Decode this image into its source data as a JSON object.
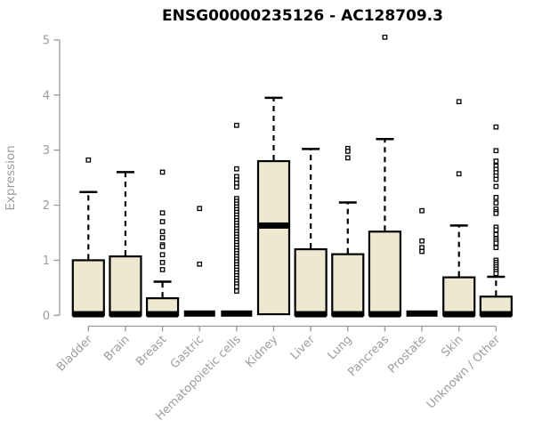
{
  "chart_data": {
    "type": "boxplot",
    "title": "ENSG00000235126 - AC128709.3",
    "ylabel": "Expression",
    "xlabel": "",
    "ylim": [
      0,
      5
    ],
    "yticks": [
      0,
      1,
      2,
      3,
      4,
      5
    ],
    "grid": false,
    "legend": "none",
    "categories": [
      "Bladder",
      "Brain",
      "Breast",
      "Gastric",
      "Hematopoietic cells",
      "Kidney",
      "Liver",
      "Lung",
      "Pancreas",
      "Prostate",
      "Skin",
      "Unknown / Other"
    ],
    "series": [
      {
        "category": "Bladder",
        "q1": 0,
        "median": 0.02,
        "q3": 1.0,
        "whisker_high": 2.24,
        "outliers": [
          2.82
        ]
      },
      {
        "category": "Brain",
        "q1": 0,
        "median": 0.02,
        "q3": 1.07,
        "whisker_high": 2.6,
        "outliers": []
      },
      {
        "category": "Breast",
        "q1": 0,
        "median": 0.02,
        "q3": 0.31,
        "whisker_high": 0.61,
        "outliers": [
          2.6,
          1.86,
          1.7,
          1.52,
          1.41,
          1.28,
          1.25,
          1.1,
          0.96,
          0.83
        ]
      },
      {
        "category": "Gastric",
        "q1": 0,
        "median": 0.01,
        "q3": 0.03,
        "whisker_high": 0.03,
        "outliers": [
          1.94,
          0.93
        ]
      },
      {
        "category": "Hematopoietic cells",
        "q1": 0,
        "median": 0.01,
        "q3": 0.03,
        "whisker_high": 0.03,
        "outliers": [
          3.45,
          2.66,
          2.52,
          2.46,
          2.4,
          2.33,
          2.12,
          2.07,
          2.02,
          1.97,
          1.92,
          1.87,
          1.82,
          1.77,
          1.72,
          1.67,
          1.62,
          1.57,
          1.52,
          1.47,
          1.42,
          1.37,
          1.32,
          1.27,
          1.22,
          1.17,
          1.12,
          1.07,
          1.02,
          0.97,
          0.92,
          0.87,
          0.82,
          0.77,
          0.72,
          0.67,
          0.62,
          0.57,
          0.52,
          0.44
        ]
      },
      {
        "category": "Kidney",
        "q1": 0.02,
        "median": 1.63,
        "q3": 2.8,
        "whisker_high": 3.95,
        "outliers": []
      },
      {
        "category": "Liver",
        "q1": 0,
        "median": 0.02,
        "q3": 1.2,
        "whisker_high": 3.02,
        "outliers": []
      },
      {
        "category": "Lung",
        "q1": 0,
        "median": 0.02,
        "q3": 1.11,
        "whisker_high": 2.05,
        "outliers": [
          3.03,
          2.98,
          2.86
        ]
      },
      {
        "category": "Pancreas",
        "q1": 0,
        "median": 0.02,
        "q3": 1.52,
        "whisker_high": 3.2,
        "outliers": [
          5.05
        ]
      },
      {
        "category": "Prostate",
        "q1": 0,
        "median": 0.01,
        "q3": 0.03,
        "whisker_high": 0.03,
        "outliers": [
          1.9,
          1.35,
          1.23,
          1.16
        ]
      },
      {
        "category": "Skin",
        "q1": 0,
        "median": 0.02,
        "q3": 0.69,
        "whisker_high": 1.63,
        "outliers": [
          3.88,
          2.57
        ]
      },
      {
        "category": "Unknown / Other",
        "q1": 0,
        "median": 0.02,
        "q3": 0.34,
        "whisker_high": 0.7,
        "outliers": [
          3.42,
          2.99,
          2.8,
          2.71,
          2.65,
          2.59,
          2.53,
          2.47,
          2.34,
          2.14,
          2.04,
          1.93,
          1.88,
          1.85,
          1.6,
          1.55,
          1.47,
          1.39,
          1.35,
          1.31,
          1.23,
          1.0,
          0.96,
          0.92,
          0.88,
          0.84,
          0.8,
          0.76
        ]
      }
    ],
    "colors": {
      "box_fill": "#EDE8D0",
      "box_stroke": "#000000",
      "median": "#000000",
      "axis_line": "#999999",
      "axis_text": "#9c9c9c",
      "title": "#000000",
      "outlier_fill": "#ffffff",
      "outlier_stroke": "#000000"
    }
  }
}
